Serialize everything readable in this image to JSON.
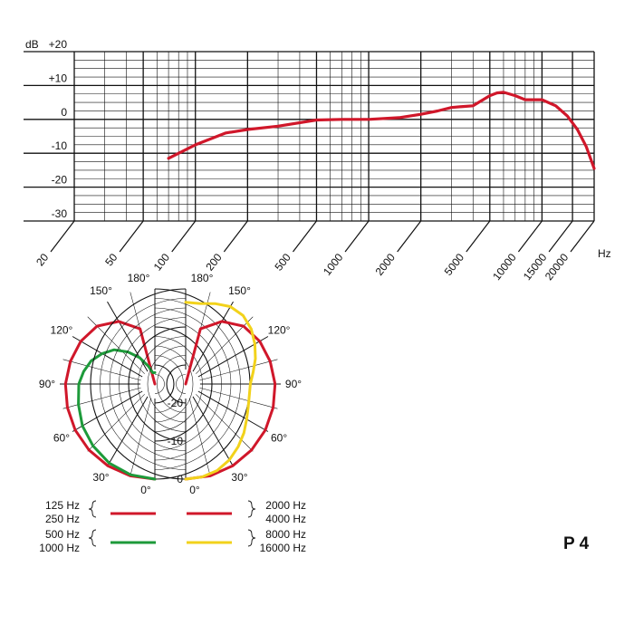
{
  "chart_data": [
    {
      "type": "line",
      "title": "",
      "xlabel": "",
      "x_unit": "Hz",
      "y_unit": "dB",
      "x_scale": "log",
      "xlim": [
        20,
        20000
      ],
      "ylim": [
        -30,
        20
      ],
      "x_ticks": [
        "20",
        "50",
        "100",
        "200",
        "500",
        "1000",
        "2000",
        "5000",
        "10000",
        "15000",
        "20000"
      ],
      "y_ticks": [
        "+20",
        "+10",
        "0",
        "-10",
        "-20",
        "-30"
      ],
      "grid": true,
      "line_color": "#d0172a",
      "series": [
        {
          "x": [
            70,
            100,
            150,
            200,
            300,
            500,
            700,
            1000,
            1500,
            2000,
            2500,
            3000,
            3500,
            4000,
            5000,
            5500,
            6000,
            7000,
            8000,
            10000,
            12000,
            14000,
            16000,
            18000,
            20000
          ],
          "y": [
            -11.5,
            -7.5,
            -4,
            -3,
            -2,
            -0.2,
            0,
            0,
            0.5,
            1.5,
            2.5,
            3.5,
            3.8,
            4,
            7,
            7.8,
            8,
            7,
            5.8,
            5.8,
            4,
            1,
            -3,
            -8,
            -14.5
          ]
        }
      ]
    },
    {
      "type": "polar",
      "title": "",
      "angle_labels": [
        "0°",
        "30°",
        "60°",
        "90°",
        "120°",
        "150°",
        "180°"
      ],
      "radial_labels": [
        "-20",
        "-10",
        "0"
      ],
      "rlim": [
        -25,
        0
      ],
      "grid": true,
      "left_half": {
        "series": [
          {
            "name": "125 Hz / 250 Hz",
            "color": "#d0172a",
            "angles": [
              0,
              15,
              30,
              45,
              60,
              75,
              90,
              105,
              120,
              135,
              150,
              165,
              180
            ],
            "values": [
              0,
              0,
              -0.2,
              -0.5,
              -0.8,
              -1.2,
              -1.5,
              -2,
              -2.5,
              -3.5,
              -6,
              -10,
              -25
            ]
          },
          {
            "name": "500 Hz / 1000 Hz",
            "color": "#1d9a3a",
            "angles": [
              0,
              15,
              30,
              45,
              60,
              75,
              90,
              100,
              110,
              120,
              130,
              140,
              150,
              160,
              170,
              180
            ],
            "values": [
              0,
              -0.3,
              -1,
              -2,
              -3,
              -4.2,
              -5,
              -6,
              -7.2,
              -9,
              -11,
              -14,
              -17,
              -20,
              -22,
              -22
            ]
          }
        ]
      },
      "right_half": {
        "series": [
          {
            "name": "2000 Hz / 4000 Hz",
            "color": "#d0172a",
            "angles": [
              0,
              15,
              30,
              45,
              60,
              75,
              90,
              105,
              120,
              135,
              150,
              165,
              180
            ],
            "values": [
              0,
              0,
              -0.2,
              -0.5,
              -0.8,
              -1.2,
              -1.5,
              -2,
              -2.5,
              -3.5,
              -6,
              -10,
              -25
            ]
          },
          {
            "name": "8000 Hz / 16000 Hz",
            "color": "#f2d21b",
            "angles": [
              0,
              10,
              20,
              30,
              40,
              50,
              60,
              70,
              80,
              90,
              100,
              110,
              120,
              130,
              140,
              150,
              160,
              170,
              180
            ],
            "values": [
              0,
              -0.2,
              -0.8,
              -2,
              -3.5,
              -5,
              -6.5,
              -7.5,
              -8,
              -8,
              -7,
              -5.5,
              -4,
              -2.5,
              -1.5,
              -1.5,
              -2.5,
              -3.5,
              -3.5
            ]
          }
        ]
      }
    }
  ],
  "legend": {
    "left": [
      {
        "labels": [
          "125 Hz",
          "250 Hz"
        ],
        "color": "#d0172a"
      },
      {
        "labels": [
          "500 Hz",
          "1000 Hz"
        ],
        "color": "#1d9a3a"
      }
    ],
    "right": [
      {
        "labels": [
          "2000 Hz",
          "4000 Hz"
        ],
        "color": "#d0172a"
      },
      {
        "labels": [
          "8000 Hz",
          "16000 Hz"
        ],
        "color": "#f2d21b"
      }
    ]
  },
  "model_label": "P 4"
}
